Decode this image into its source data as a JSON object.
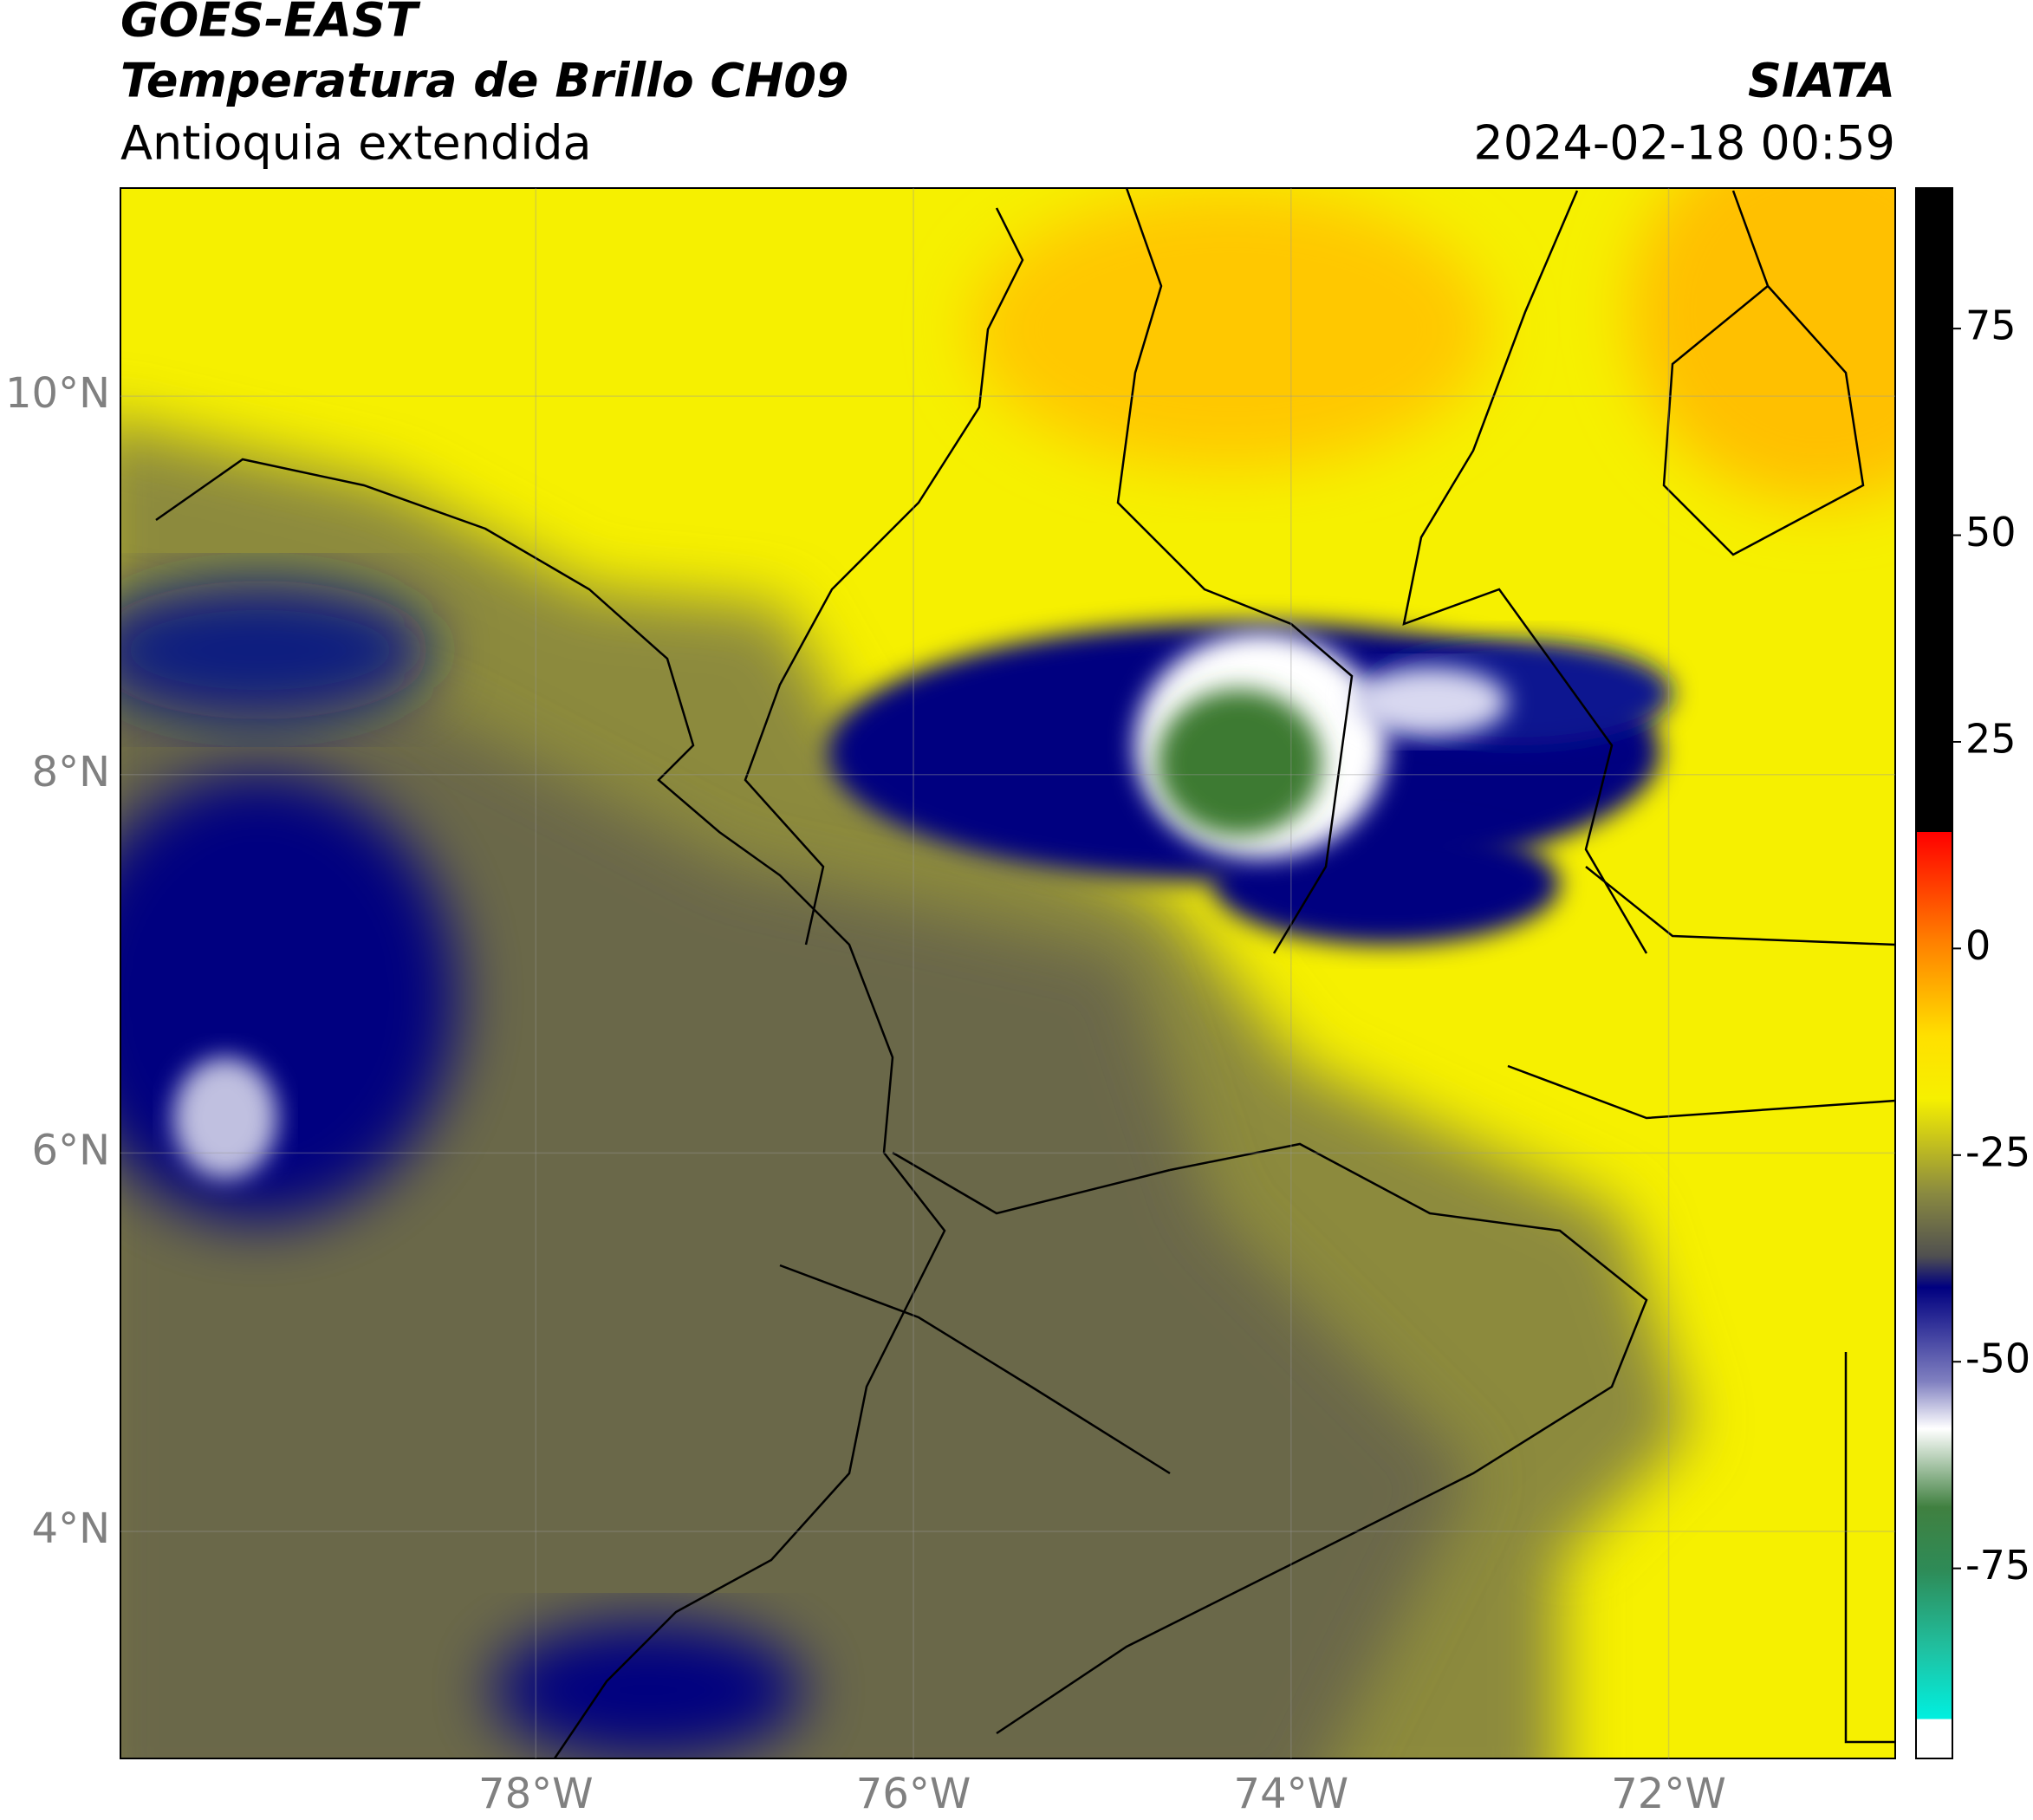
{
  "header": {
    "satellite": "GOES-EAST",
    "product": "Temperatura de Brillo CH09",
    "region": "Antioquia extendida",
    "agency": "SIATA",
    "datetime": "2024-02-18 00:59"
  },
  "map": {
    "xlim": [
      -80.2,
      -70.8
    ],
    "ylim": [
      2.8,
      11.1
    ],
    "xticks": [
      {
        "value": -78,
        "label": "78°W"
      },
      {
        "value": -76,
        "label": "76°W"
      },
      {
        "value": -74,
        "label": "74°W"
      },
      {
        "value": -72,
        "label": "72°W"
      }
    ],
    "yticks": [
      {
        "value": 10,
        "label": "10°N"
      },
      {
        "value": 8,
        "label": "8°N"
      },
      {
        "value": 6,
        "label": "6°N"
      },
      {
        "value": 4,
        "label": "4°N"
      }
    ],
    "grid": true
  },
  "colorbar": {
    "lim": [
      -98,
      92
    ],
    "ticks": [
      75,
      50,
      25,
      0,
      -25,
      -50,
      -75
    ]
  }
}
